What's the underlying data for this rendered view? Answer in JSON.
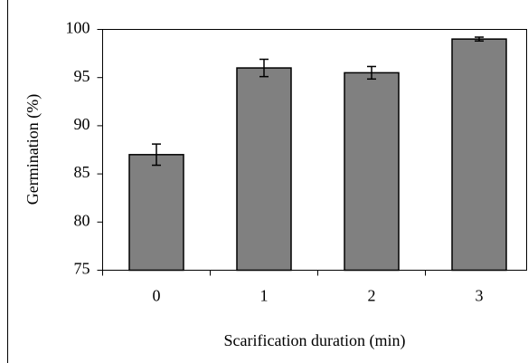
{
  "chart_data": {
    "type": "bar",
    "x_label": "Scarification duration (min)",
    "y_label": "Germination (%)",
    "categories": [
      "0",
      "1",
      "2",
      "3"
    ],
    "values": [
      87,
      96,
      95.5,
      99
    ],
    "errors": [
      1.1,
      0.9,
      0.65,
      0.2
    ],
    "color": "#808080",
    "ylim": [
      75,
      100
    ],
    "yticks": [
      75,
      80,
      85,
      90,
      95,
      100
    ],
    "grid": false
  }
}
